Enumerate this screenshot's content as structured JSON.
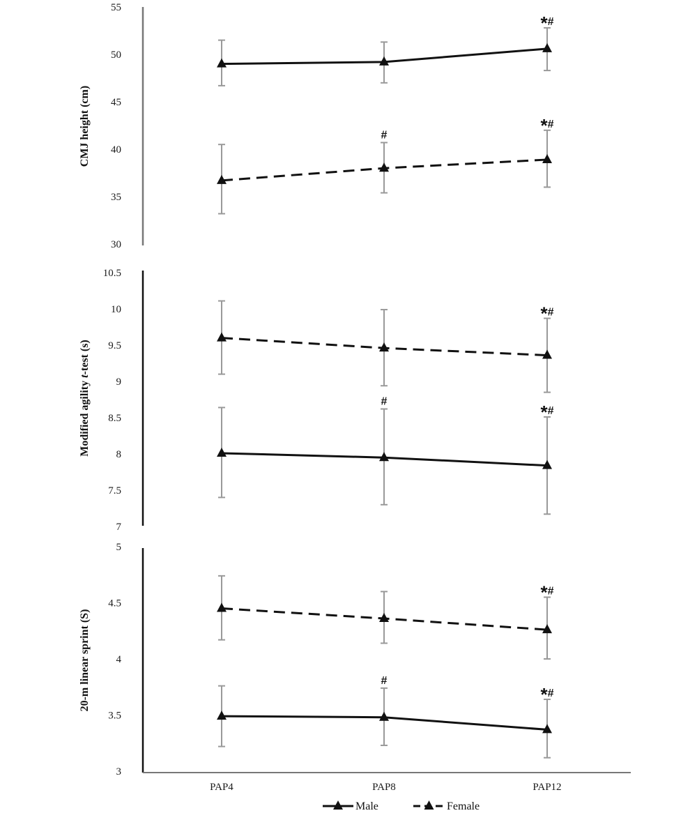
{
  "chart_data": {
    "type": "line",
    "categories": [
      "PAP4",
      "PAP8",
      "PAP12"
    ],
    "legend": [
      {
        "name": "Male",
        "line_style": "solid"
      },
      {
        "name": "Female",
        "line_style": "dashed"
      }
    ],
    "panels": [
      {
        "ylabel": "CMJ height (cm)",
        "ylim": [
          30,
          55
        ],
        "yticks": [
          "30",
          "35",
          "40",
          "45",
          "50",
          "55"
        ],
        "series": [
          {
            "name": "Male",
            "values": [
              49.0,
              49.2,
              50.6
            ],
            "err_low": [
              46.7,
              47.0,
              48.3
            ],
            "err_high": [
              51.5,
              51.3,
              52.8
            ],
            "marks": [
              "",
              "",
              "*#"
            ]
          },
          {
            "name": "Female",
            "values": [
              36.7,
              38.0,
              38.9
            ],
            "err_low": [
              33.2,
              35.4,
              36.0
            ],
            "err_high": [
              40.5,
              40.7,
              42.0
            ],
            "marks": [
              "",
              "#",
              "*#"
            ]
          }
        ]
      },
      {
        "ylabel_parts": [
          "Modified agility ",
          "t",
          "-test (s)"
        ],
        "ylim": [
          7,
          10.5
        ],
        "yticks": [
          "7",
          "7.5",
          "8",
          "8.5",
          "9",
          "9.5",
          "10",
          "10.5"
        ],
        "series": [
          {
            "name": "Male",
            "values": [
              8.01,
              7.95,
              7.84
            ],
            "err_low": [
              7.4,
              7.3,
              7.17
            ],
            "err_high": [
              8.64,
              8.62,
              8.51
            ],
            "marks": [
              "",
              "#",
              "*#"
            ]
          },
          {
            "name": "Female",
            "values": [
              9.6,
              9.46,
              9.36
            ],
            "err_low": [
              9.1,
              8.94,
              8.85
            ],
            "err_high": [
              10.11,
              9.99,
              9.87
            ],
            "marks": [
              "",
              "",
              "*#"
            ]
          }
        ]
      },
      {
        "ylabel": "20-m linear sprint (S)",
        "ylim": [
          3,
          5
        ],
        "yticks": [
          "3",
          "3.5",
          "4",
          "4.5",
          "5"
        ],
        "series": [
          {
            "name": "Male",
            "values": [
              3.49,
              3.48,
              3.37
            ],
            "err_low": [
              3.22,
              3.23,
              3.12
            ],
            "err_high": [
              3.76,
              3.74,
              3.64
            ],
            "marks": [
              "",
              "#",
              "*#"
            ]
          },
          {
            "name": "Female",
            "values": [
              4.45,
              4.36,
              4.26
            ],
            "err_low": [
              4.17,
              4.14,
              4.0
            ],
            "err_high": [
              4.74,
              4.6,
              4.55
            ],
            "marks": [
              "",
              "",
              "*#"
            ]
          }
        ]
      }
    ]
  }
}
